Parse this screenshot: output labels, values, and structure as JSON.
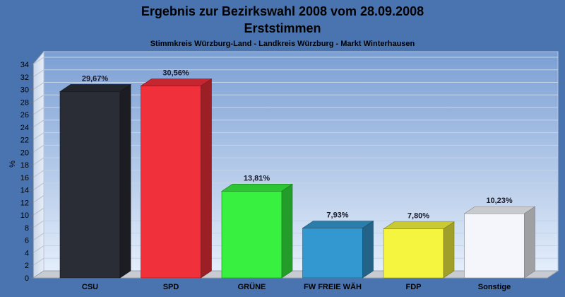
{
  "chart_data": {
    "type": "bar",
    "title": "Ergebnis zur Bezirkswahl 2008 vom 28.09.2008",
    "subtitle": "Erststimmen",
    "caption": "Stimmkreis Würzburg-Land - Landkreis Würzburg - Markt Winterhausen",
    "ylabel": "%",
    "xlabel": "",
    "ylim": [
      0,
      34
    ],
    "ytick_step": 2,
    "grid": true,
    "categories": [
      "CSU",
      "SPD",
      "GRÜNE",
      "FW FREIE WÄH",
      "FDP",
      "Sonstige"
    ],
    "values": [
      29.67,
      30.56,
      13.81,
      7.93,
      7.8,
      10.23
    ],
    "value_labels": [
      "29,67%",
      "30,56%",
      "13,81%",
      "7,93%",
      "7,80%",
      "10,23%"
    ],
    "colors": [
      "#2a2d36",
      "#f0303a",
      "#38f040",
      "#3498d0",
      "#f5f540",
      "#f4f6fb"
    ]
  }
}
